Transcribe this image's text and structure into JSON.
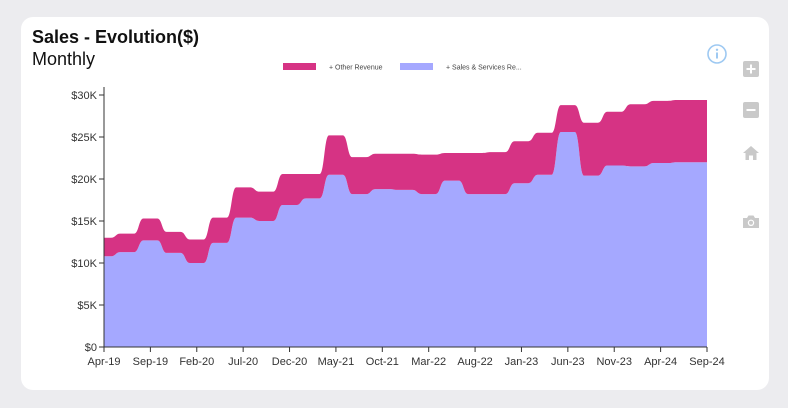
{
  "header": {
    "title": "Sales - Evolution($)",
    "subtitle": "Monthly"
  },
  "toolbar": {
    "icons": [
      "info-icon",
      "zoom-in-icon",
      "zoom-out-icon",
      "home-icon",
      "camera-icon"
    ]
  },
  "colors": {
    "other_revenue": "#d63384",
    "sales_services": "#a5a8ff",
    "info": "#9ec9f2",
    "toolbar_icon": "#c9c9c9"
  },
  "chart_data": {
    "type": "area",
    "stacked": true,
    "x": [
      "Apr-19",
      "Jul-19",
      "Sep-19",
      "Nov-19",
      "Feb-20",
      "Apr-20",
      "Jul-20",
      "Sep-20",
      "Dec-20",
      "Feb-21",
      "May-21",
      "Aug-21",
      "Oct-21",
      "Dec-21",
      "Mar-22",
      "May-22",
      "Aug-22",
      "Oct-22",
      "Jan-23",
      "Mar-23",
      "Jun-23",
      "Aug-23",
      "Nov-23",
      "Feb-24",
      "Apr-24",
      "Jun-24",
      "Sep-24"
    ],
    "x_tick_labels": [
      "Apr-19",
      "Sep-19",
      "Feb-20",
      "Jul-20",
      "Dec-20",
      "May-21",
      "Oct-21",
      "Mar-22",
      "Aug-22",
      "Jan-23",
      "Jun-23",
      "Nov-23",
      "Apr-24",
      "Sep-24"
    ],
    "series": [
      {
        "name": "+ Sales & Services Re...",
        "values": [
          10800,
          11300,
          12700,
          11200,
          10000,
          12400,
          15400,
          15000,
          16900,
          17700,
          20500,
          18200,
          18800,
          18700,
          18200,
          19800,
          18200,
          18200,
          19500,
          20500,
          25600,
          20400,
          21600,
          21500,
          21900,
          22000,
          22000
        ]
      },
      {
        "name": "+ Other Revenue",
        "values": [
          2200,
          2200,
          2600,
          2500,
          2800,
          3000,
          3600,
          3500,
          3700,
          2900,
          4700,
          4400,
          4200,
          4300,
          4700,
          3300,
          4900,
          5000,
          5000,
          5000,
          3200,
          6300,
          6400,
          7400,
          7400,
          7400,
          7400
        ]
      }
    ],
    "y_tick_labels": [
      "$0",
      "$5K",
      "$10K",
      "$15K",
      "$20K",
      "$25K",
      "$30K"
    ],
    "ylim": [
      0,
      30000
    ],
    "legend": [
      "+ Other Revenue",
      "+ Sales & Services Re..."
    ],
    "legend_position": "top-center",
    "grid": false
  }
}
